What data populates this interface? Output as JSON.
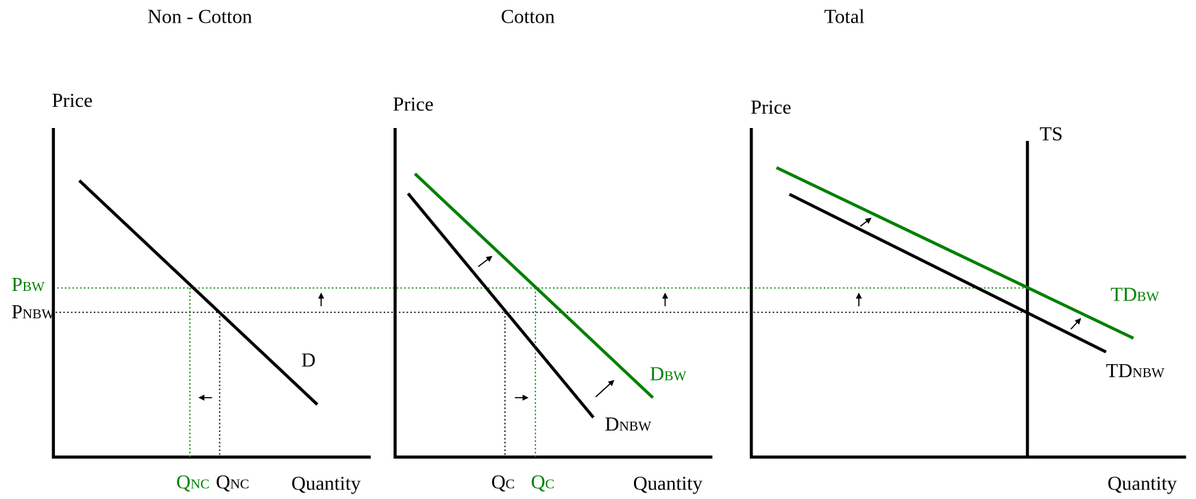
{
  "panels": [
    {
      "title": "Non - Cotton",
      "y_axis": "Price",
      "x_axis": "Quantity",
      "curves": [
        {
          "base": "D"
        }
      ],
      "quantities": [
        {
          "base": "Q",
          "sub": "NC"
        },
        {
          "base": "Q",
          "sub": "NC"
        }
      ]
    },
    {
      "title": "Cotton",
      "y_axis": "Price",
      "x_axis": "Quantity",
      "curves": [
        {
          "base": "D",
          "sub": "BW"
        },
        {
          "base": "D",
          "sub": "NBW"
        }
      ],
      "quantities": [
        {
          "base": "Q",
          "sub": "C"
        },
        {
          "base": "Q",
          "sub": "C"
        }
      ]
    },
    {
      "title": "Total",
      "y_axis": "Price",
      "x_axis": "Quantity",
      "curves": [
        {
          "base": "TS"
        },
        {
          "base": "TD",
          "sub": "BW"
        },
        {
          "base": "TD",
          "sub": "NBW"
        }
      ]
    }
  ],
  "prices": [
    {
      "base": "P",
      "sub": "BW"
    },
    {
      "base": "P",
      "sub": "NBW"
    }
  ]
}
